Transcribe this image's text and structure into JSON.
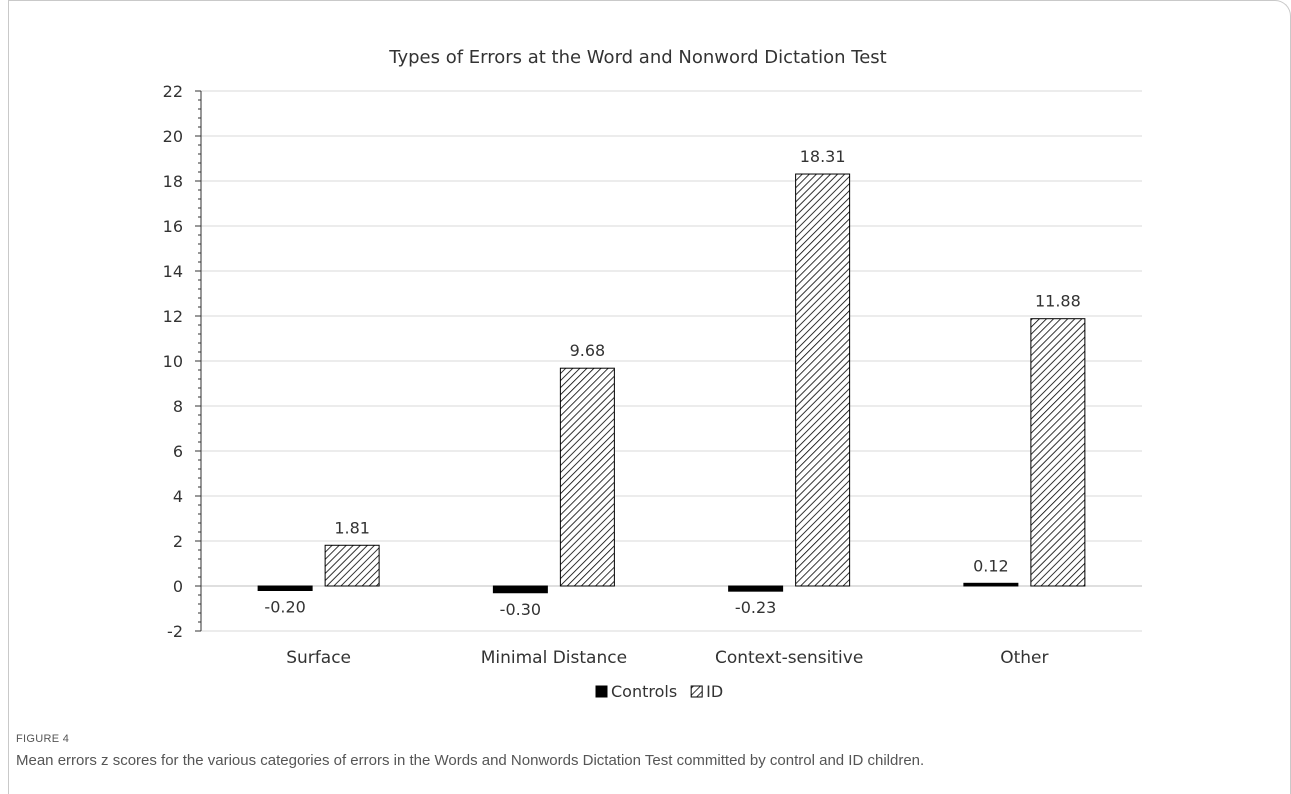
{
  "chart_data": {
    "type": "bar",
    "title": "Types of Errors at the Word and Nonword Dictation Test",
    "categories": [
      "Surface",
      "Minimal Distance",
      "Context-sensitive",
      "Other"
    ],
    "series": [
      {
        "name": "Controls",
        "values": [
          -0.2,
          -0.3,
          -0.23,
          0.12
        ],
        "labels": [
          "-0.20",
          "-0.30",
          "-0.23",
          "0.12"
        ],
        "color": "#000000",
        "pattern": "solid"
      },
      {
        "name": "ID",
        "values": [
          1.81,
          9.68,
          18.31,
          11.88
        ],
        "labels": [
          "1.81",
          "9.68",
          "18.31",
          "11.88"
        ],
        "color": "#000000",
        "pattern": "diagonal-hatch"
      }
    ],
    "ylim": [
      -2,
      22
    ],
    "yticks": [
      -2,
      0,
      2,
      4,
      6,
      8,
      10,
      12,
      14,
      16,
      18,
      20,
      22
    ],
    "grid": true,
    "legend": "bottom-center",
    "xlabel": "",
    "ylabel": ""
  },
  "figure": {
    "label": "FIGURE 4",
    "caption": "Mean errors z scores for the various categories of errors in the Words and Nonwords Dictation Test committed by control and ID children."
  }
}
